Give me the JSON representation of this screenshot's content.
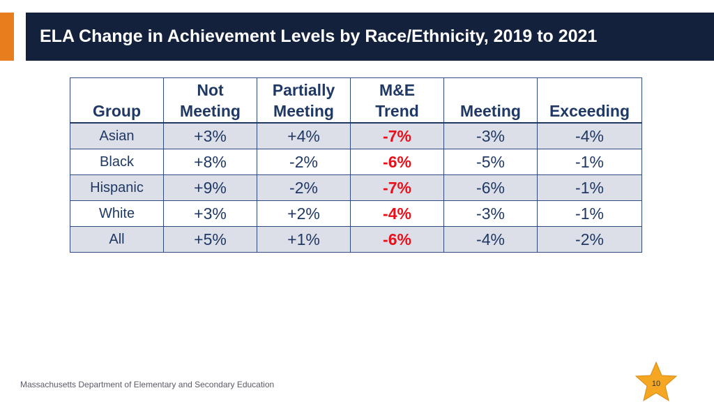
{
  "slide": {
    "title": "ELA Change in Achievement Levels by Race/Ethnicity, 2019 to 2021",
    "footer": "Massachusetts Department of Elementary and Secondary Education",
    "page_number": "10"
  },
  "colors": {
    "title_bar": "#14213d",
    "accent": "#e87d1e",
    "table_border": "#2f4a80",
    "header_text": "#1f3864",
    "shaded_row": "#dcdfe8",
    "trend_text": "#e8101a",
    "star": "#f5a623"
  },
  "table": {
    "headers": {
      "group": "Group",
      "not_meeting_line1": "Not",
      "not_meeting_line2": "Meeting",
      "partially_line1": "Partially",
      "partially_line2": "Meeting",
      "trend_line1": "M&E",
      "trend_line2": "Trend",
      "meeting": "Meeting",
      "exceeding": "Exceeding"
    },
    "rows": [
      {
        "group": "Asian",
        "not_meeting": "+3%",
        "partially_meeting": "+4%",
        "me_trend": "-7%",
        "meeting": "-3%",
        "exceeding": "-4%"
      },
      {
        "group": "Black",
        "not_meeting": "+8%",
        "partially_meeting": "-2%",
        "me_trend": "-6%",
        "meeting": "-5%",
        "exceeding": "-1%"
      },
      {
        "group": "Hispanic",
        "not_meeting": "+9%",
        "partially_meeting": "-2%",
        "me_trend": "-7%",
        "meeting": "-6%",
        "exceeding": "-1%"
      },
      {
        "group": "White",
        "not_meeting": "+3%",
        "partially_meeting": "+2%",
        "me_trend": "-4%",
        "meeting": "-3%",
        "exceeding": "-1%"
      },
      {
        "group": "All",
        "not_meeting": "+5%",
        "partially_meeting": "+1%",
        "me_trend": "-6%",
        "meeting": "-4%",
        "exceeding": "-2%"
      }
    ]
  }
}
